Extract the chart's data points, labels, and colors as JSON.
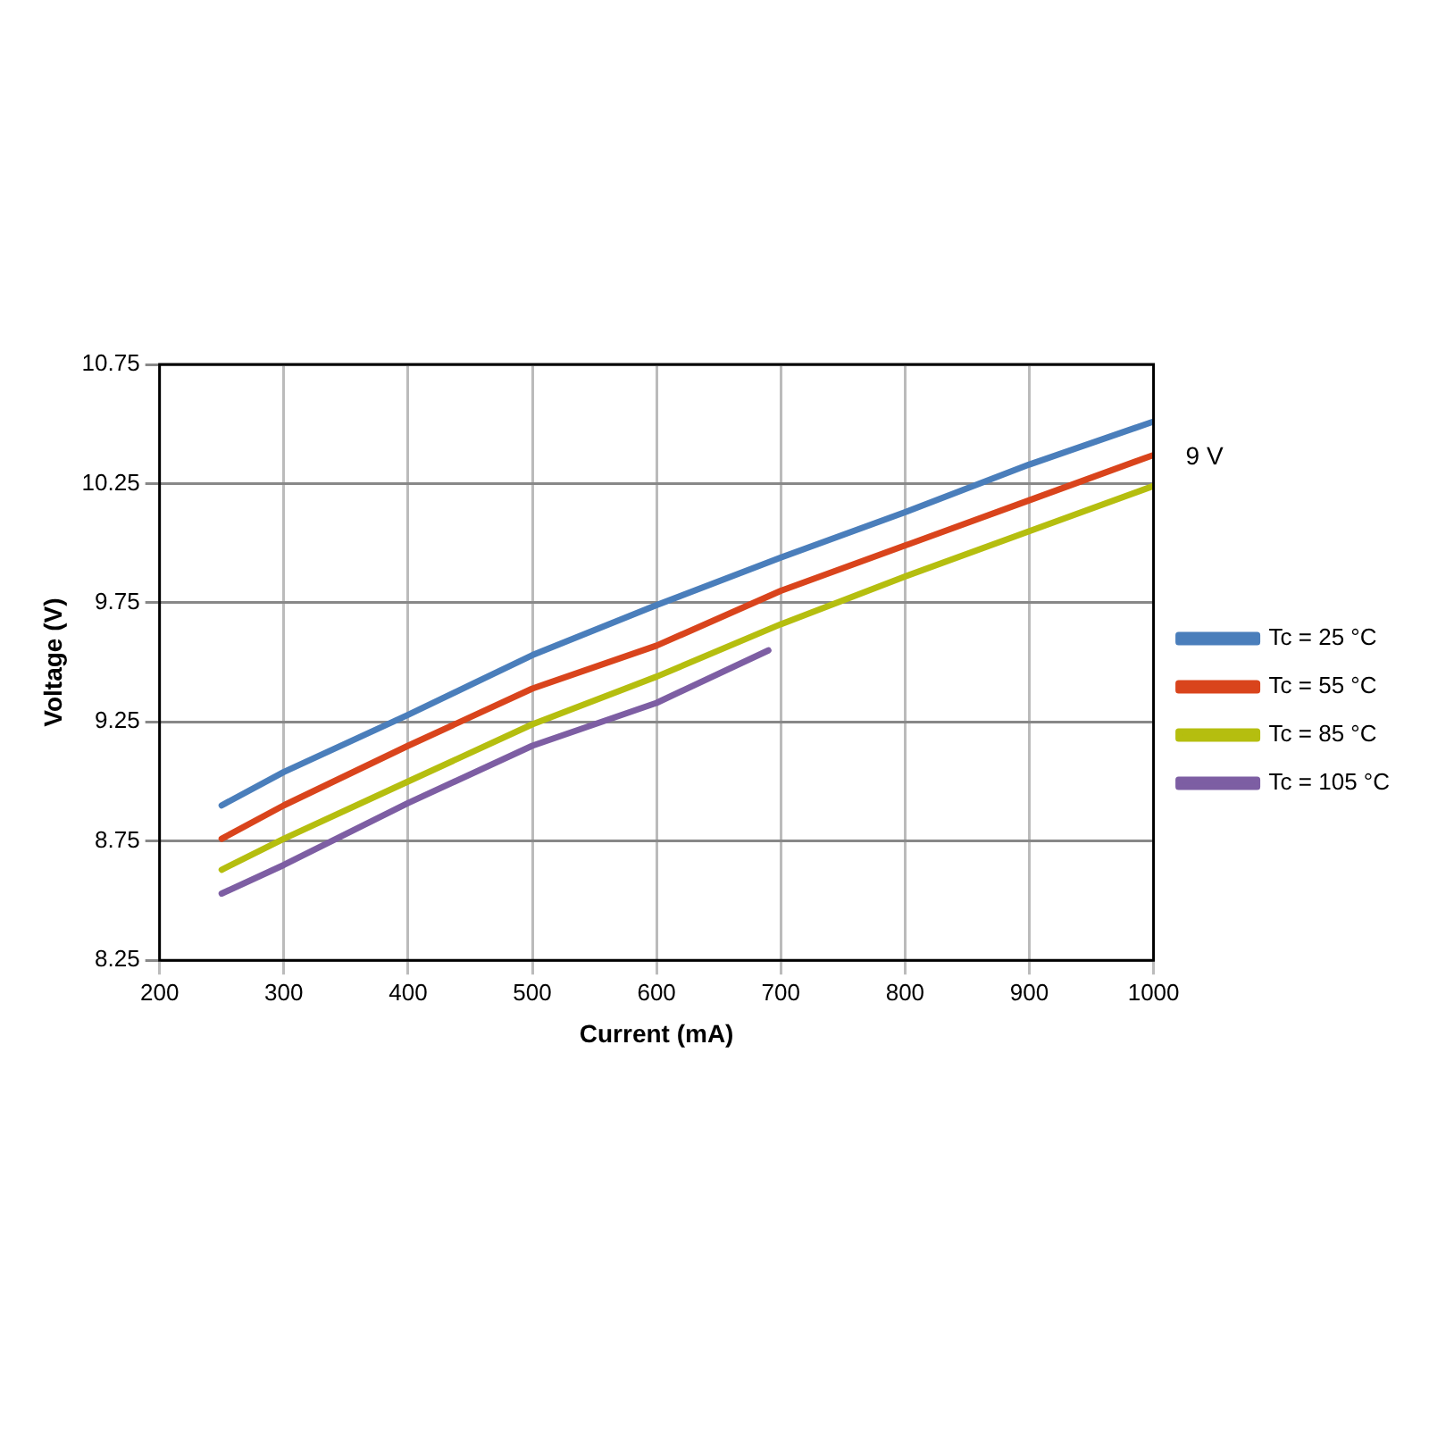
{
  "chart_data": {
    "type": "line",
    "xlabel": "Current (mA)",
    "ylabel": "Voltage (V)",
    "annotations": [
      "9 V"
    ],
    "xlim": [
      200,
      1000
    ],
    "xticks": [
      200,
      300,
      400,
      500,
      600,
      700,
      800,
      900,
      1000
    ],
    "ylim": [
      8.25,
      10.75
    ],
    "yticks": [
      8.25,
      8.75,
      9.25,
      9.75,
      10.25,
      10.75
    ],
    "grid": true,
    "legend": "right",
    "marker": "none",
    "line_style": "solid",
    "series": [
      {
        "name": "Tc = 25 °C",
        "color": "#4a7ebb",
        "x": [
          250,
          300,
          400,
          500,
          600,
          700,
          800,
          900,
          1000
        ],
        "values": [
          8.9,
          9.04,
          9.28,
          9.53,
          9.74,
          9.94,
          10.13,
          10.33,
          10.51
        ]
      },
      {
        "name": "Tc = 55 °C",
        "color": "#d9441c",
        "x": [
          250,
          300,
          400,
          500,
          600,
          700,
          800,
          900,
          1000
        ],
        "values": [
          8.76,
          8.9,
          9.15,
          9.39,
          9.57,
          9.8,
          9.99,
          10.18,
          10.37
        ]
      },
      {
        "name": "Tc = 85 °C",
        "color": "#b5be0f",
        "x": [
          250,
          300,
          400,
          500,
          600,
          700,
          800,
          900,
          1000
        ],
        "values": [
          8.63,
          8.76,
          9.0,
          9.24,
          9.44,
          9.66,
          9.86,
          10.05,
          10.24
        ]
      },
      {
        "name": "Tc = 105 °C",
        "color": "#7d5ea3",
        "x": [
          250,
          300,
          400,
          500,
          600,
          690
        ],
        "values": [
          8.53,
          8.65,
          8.91,
          9.15,
          9.33,
          9.55
        ]
      }
    ]
  }
}
